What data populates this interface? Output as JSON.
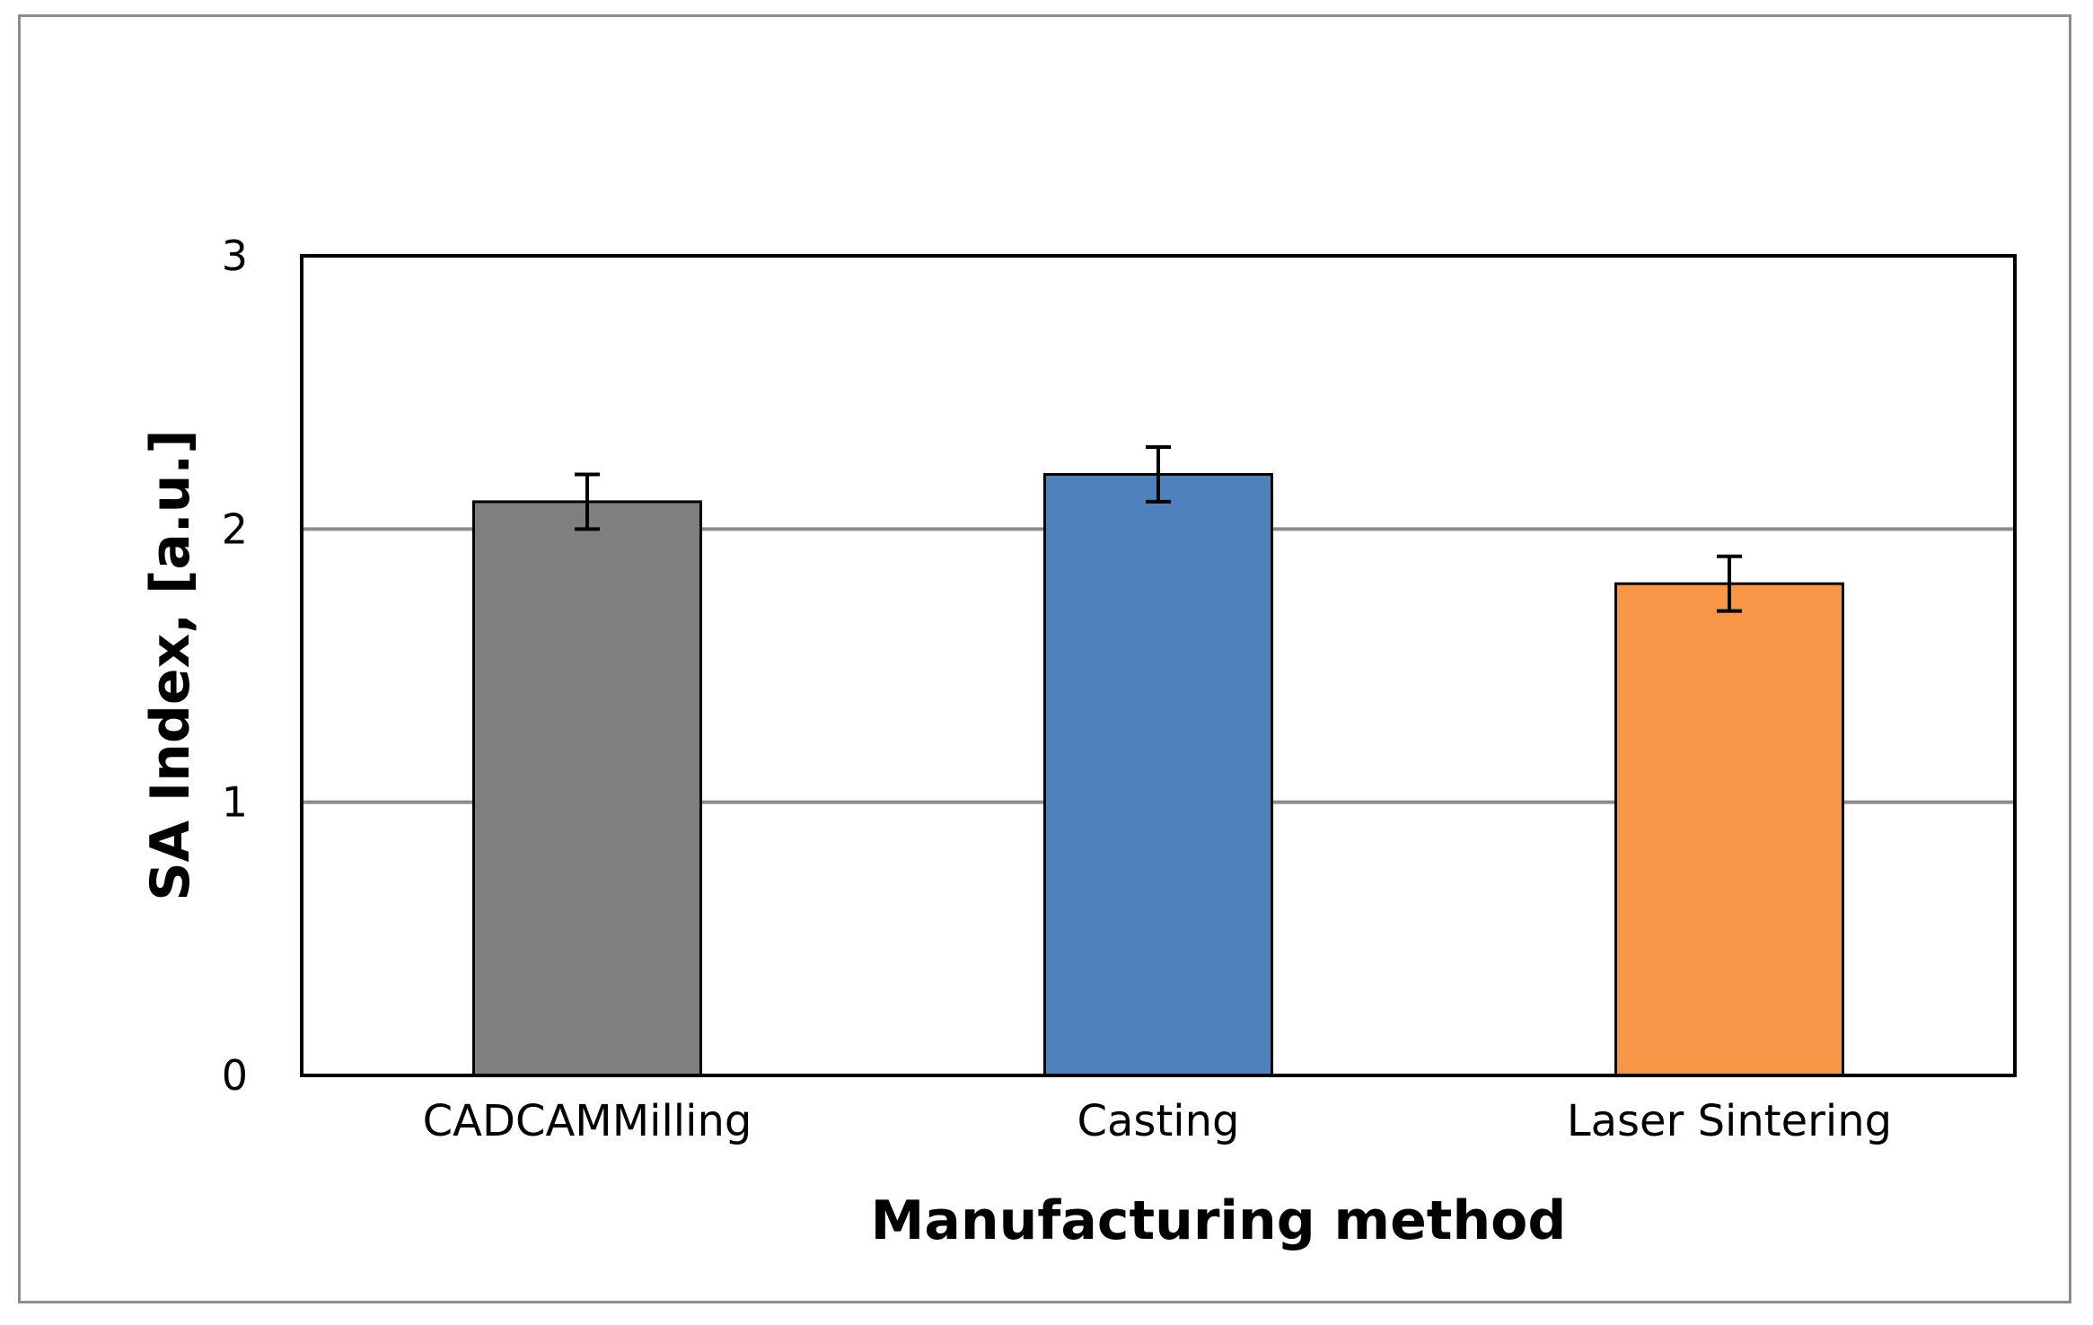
{
  "chart_data": {
    "type": "bar",
    "title": "",
    "xlabel": "Manufacturing method",
    "ylabel": "SA Index, [a.u.]",
    "categories": [
      "CADCAMMilling",
      "Casting",
      "Laser Sintering"
    ],
    "values": [
      2.1,
      2.2,
      1.8
    ],
    "error": [
      0.1,
      0.1,
      0.1
    ],
    "colors": [
      "#7f7f7f",
      "#4f81bd",
      "#f79646"
    ],
    "ylim": [
      0,
      3
    ],
    "yticks": [
      0,
      1,
      2,
      3
    ],
    "ytick_labels": [
      "0",
      "1",
      "2",
      "3"
    ],
    "grid": true,
    "legend": "none"
  }
}
